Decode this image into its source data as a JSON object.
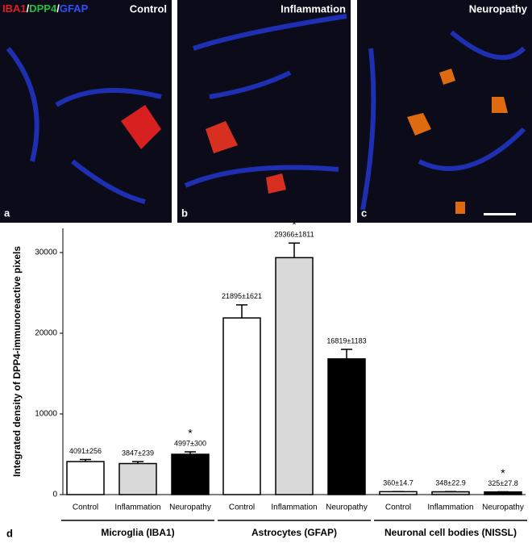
{
  "panels": [
    {
      "letter": "a",
      "label": "Control"
    },
    {
      "letter": "b",
      "label": "Inflammation"
    },
    {
      "letter": "c",
      "label": "Neuropathy"
    }
  ],
  "stain_legend": [
    "IBA1",
    "/",
    "DPP4",
    "/",
    "GFAP"
  ],
  "chart_data": {
    "type": "bar",
    "panel_letter": "d",
    "y_label": "Integrated density of DPP4-immunoreactive pixels",
    "groups": [
      "Microglia (IBA1)",
      "Astrocytes (GFAP)",
      "Neuronal cell bodies (NISSL)"
    ],
    "series": [
      {
        "name": "Control",
        "color": "#ffffff",
        "values": [
          4091,
          21895,
          360
        ],
        "errors": [
          256,
          1621,
          14.7
        ],
        "value_labels": [
          "4091±256",
          "21895±1621",
          "360±14.7"
        ],
        "stars": [
          null,
          null,
          null
        ]
      },
      {
        "name": "Inflammation",
        "color": "#d9d9d9",
        "values": [
          3847,
          29366,
          348
        ],
        "errors": [
          239,
          1811,
          22.9
        ],
        "value_labels": [
          "3847±239",
          "29366±1811",
          "348±22.9"
        ],
        "stars": [
          null,
          "*",
          null
        ]
      },
      {
        "name": "Neuropathy",
        "color": "#000000",
        "values": [
          4997,
          16819,
          325
        ],
        "errors": [
          300,
          1183,
          27.8
        ],
        "value_labels": [
          "4997±300",
          "16819±1183",
          "325±27.8"
        ],
        "stars": [
          "*",
          null,
          "*"
        ]
      }
    ],
    "ylim": [
      0,
      33000
    ],
    "yticks": [
      0,
      10000,
      20000,
      30000
    ]
  }
}
